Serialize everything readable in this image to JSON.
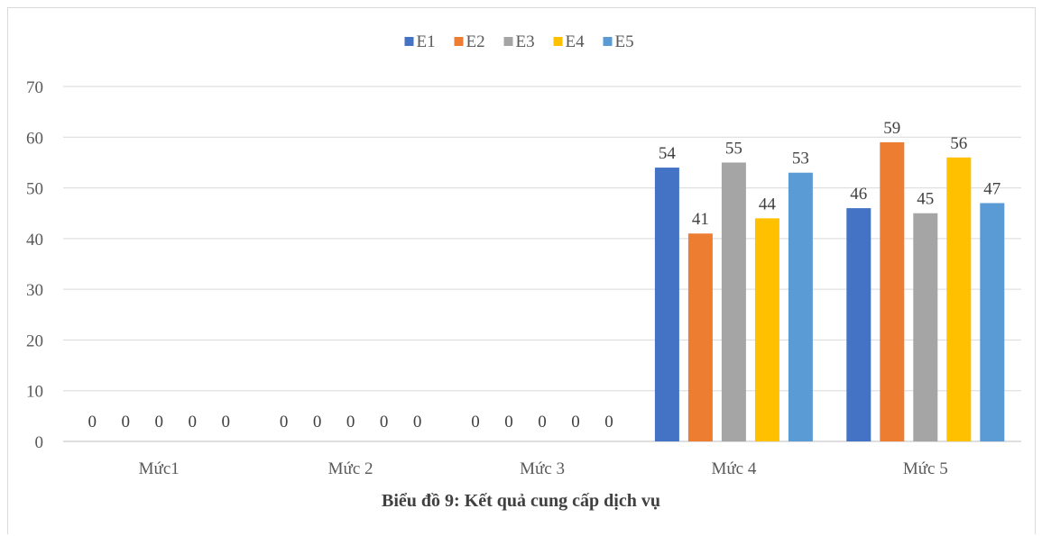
{
  "chart_data": {
    "type": "bar",
    "title": "Biểu đồ 9: Kết quả cung cấp dịch vụ",
    "categories": [
      "Mức1",
      "Mức 2",
      "Mức 3",
      "Mức 4",
      "Mức 5"
    ],
    "series": [
      {
        "name": "E1",
        "color": "#4472C4",
        "values": [
          0,
          0,
          0,
          54,
          46
        ]
      },
      {
        "name": "E2",
        "color": "#ED7D31",
        "values": [
          0,
          0,
          0,
          41,
          59
        ]
      },
      {
        "name": "E3",
        "color": "#A5A5A5",
        "values": [
          0,
          0,
          0,
          55,
          45
        ]
      },
      {
        "name": "E4",
        "color": "#FFC000",
        "values": [
          0,
          0,
          0,
          44,
          56
        ]
      },
      {
        "name": "E5",
        "color": "#5B9BD5",
        "values": [
          0,
          0,
          0,
          53,
          47
        ]
      }
    ],
    "ylim": [
      0,
      70
    ],
    "yticks": [
      0,
      10,
      20,
      30,
      40,
      50,
      60,
      70
    ],
    "grid": true,
    "legend": "top-center",
    "data_labels": true
  }
}
